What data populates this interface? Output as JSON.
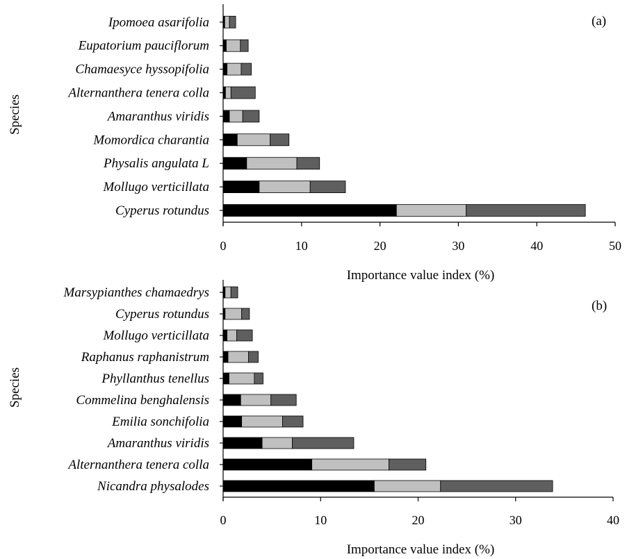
{
  "colors": {
    "segment_1": "#000000",
    "segment_2": "#c0c0c0",
    "segment_3": "#5f5f5f",
    "axis": "#000000"
  },
  "chart_data": [
    {
      "type": "bar",
      "orientation": "horizontal",
      "stacked": true,
      "panel_label": "(a)",
      "xlabel": "Importance value index (%)",
      "ylabel": "Species",
      "xlim": [
        0,
        50
      ],
      "xticks": [
        0,
        10,
        20,
        30,
        40,
        50
      ],
      "categories": [
        "Cyperus rotundus",
        "Mollugo verticillata",
        "Physalis angulata L",
        "Momordica charantia",
        "Amaranthus viridis",
        "Alternanthera tenera colla",
        "Chamaesyce hyssopifolia",
        "Eupatorium pauciflorum",
        "Ipomoea asarifolia"
      ],
      "series": [
        {
          "values": [
            22.1,
            4.6,
            3.0,
            1.8,
            0.8,
            0.3,
            0.5,
            0.4,
            0.2
          ]
        },
        {
          "values": [
            8.9,
            6.5,
            6.4,
            4.2,
            1.7,
            0.7,
            1.8,
            1.8,
            0.6
          ]
        },
        {
          "values": [
            15.2,
            4.5,
            2.9,
            2.4,
            2.1,
            3.1,
            1.3,
            1.0,
            0.8
          ]
        }
      ],
      "grid": false,
      "legend": "none"
    },
    {
      "type": "bar",
      "orientation": "horizontal",
      "stacked": true,
      "panel_label": "(b)",
      "xlabel": "Importance value index (%)",
      "ylabel": "Species",
      "xlim": [
        0,
        40
      ],
      "xticks": [
        0,
        10,
        20,
        30,
        40
      ],
      "categories": [
        "Nicandra physalodes",
        "Alternanthera tenera colla",
        "Amaranthus viridis",
        "Emilia sonchifolia",
        "Commelina benghalensis",
        "Phyllanthus tenellus",
        "Raphanus raphanistrum",
        "Mollugo verticillata",
        "Cyperus rotundus",
        "Marsypianthes chamaedrys"
      ],
      "series": [
        {
          "values": [
            15.5,
            9.1,
            4.0,
            1.9,
            1.8,
            0.6,
            0.5,
            0.4,
            0.2,
            0.2
          ]
        },
        {
          "values": [
            6.8,
            7.9,
            3.1,
            4.2,
            3.1,
            2.6,
            2.1,
            1.0,
            1.7,
            0.6
          ]
        },
        {
          "values": [
            11.5,
            3.8,
            6.3,
            2.1,
            2.6,
            0.9,
            1.0,
            1.6,
            0.8,
            0.7
          ]
        }
      ],
      "grid": false,
      "legend": "none"
    }
  ]
}
